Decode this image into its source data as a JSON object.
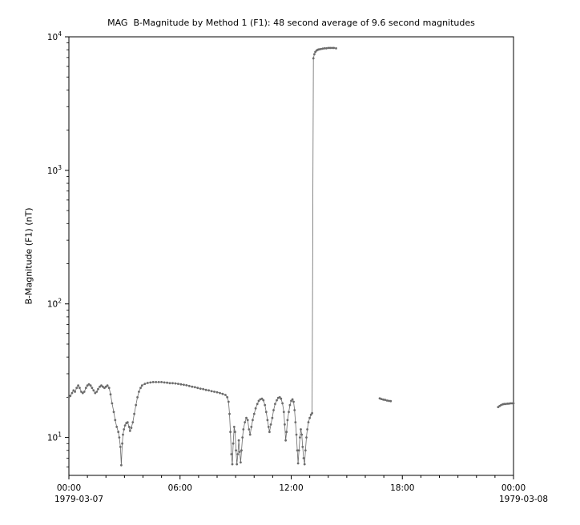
{
  "chart_data": {
    "type": "line",
    "title": "MAG  B-Magnitude by Method 1 (F1): 48 second average of 9.6 second magnitudes",
    "xlabel": "",
    "ylabel": "B-Magnitude (F1) (nT)",
    "yscale": "log",
    "ylim": [
      5.2,
      10000
    ],
    "xlim_hours": [
      0,
      24
    ],
    "grid": false,
    "legend_position": "none",
    "line_color": "#6b6b6b",
    "marker": "dot",
    "x_ticks": [
      {
        "hour": 0,
        "label": "00:00",
        "date": "1979-03-07"
      },
      {
        "hour": 6,
        "label": "06:00"
      },
      {
        "hour": 12,
        "label": "12:00"
      },
      {
        "hour": 18,
        "label": "18:00"
      },
      {
        "hour": 24,
        "label": "00:00",
        "date": "1979-03-08"
      }
    ],
    "y_ticks": [
      {
        "base": "10",
        "exp": 1
      },
      {
        "base": "10",
        "exp": 2
      },
      {
        "base": "10",
        "exp": 3
      },
      {
        "base": "10",
        "exp": 4
      }
    ],
    "series": [
      {
        "name": "B-Magnitude (F1)",
        "color": "#6b6b6b",
        "segments": [
          [
            [
              0.0,
              20
            ],
            [
              0.08,
              20.5
            ],
            [
              0.17,
              21.5
            ],
            [
              0.25,
              22.5
            ],
            [
              0.33,
              22
            ],
            [
              0.42,
              23.5
            ],
            [
              0.5,
              24.5
            ],
            [
              0.58,
              23.5
            ],
            [
              0.67,
              22
            ],
            [
              0.75,
              21.5
            ],
            [
              0.83,
              22
            ],
            [
              0.92,
              23.5
            ],
            [
              1.0,
              24.5
            ],
            [
              1.08,
              25
            ],
            [
              1.17,
              24.5
            ],
            [
              1.25,
              23.5
            ],
            [
              1.33,
              22.5
            ],
            [
              1.42,
              21.5
            ],
            [
              1.5,
              22
            ],
            [
              1.58,
              23
            ],
            [
              1.67,
              24
            ],
            [
              1.75,
              24.5
            ],
            [
              1.83,
              24
            ],
            [
              1.92,
              23.5
            ],
            [
              2.0,
              24
            ],
            [
              2.08,
              24.5
            ],
            [
              2.17,
              23.5
            ],
            [
              2.25,
              21
            ],
            [
              2.33,
              18
            ],
            [
              2.42,
              15.5
            ],
            [
              2.5,
              13.5
            ],
            [
              2.58,
              12
            ],
            [
              2.67,
              11
            ],
            [
              2.72,
              10
            ],
            [
              2.78,
              8.5
            ],
            [
              2.83,
              6.2
            ],
            [
              2.88,
              9
            ],
            [
              2.92,
              10.5
            ],
            [
              2.97,
              11.5
            ],
            [
              3.03,
              12.3
            ],
            [
              3.1,
              12.8
            ],
            [
              3.17,
              13
            ],
            [
              3.25,
              12
            ],
            [
              3.3,
              11.2
            ],
            [
              3.37,
              11.8
            ],
            [
              3.45,
              13
            ],
            [
              3.53,
              15
            ],
            [
              3.62,
              17.5
            ],
            [
              3.7,
              20
            ],
            [
              3.78,
              22
            ],
            [
              3.87,
              23.5
            ],
            [
              3.95,
              24.5
            ],
            [
              4.1,
              25.2
            ],
            [
              4.25,
              25.6
            ],
            [
              4.4,
              25.8
            ],
            [
              4.55,
              26
            ],
            [
              4.7,
              26
            ],
            [
              4.85,
              26
            ],
            [
              5.0,
              26
            ],
            [
              5.15,
              25.8
            ],
            [
              5.3,
              25.7
            ],
            [
              5.45,
              25.5
            ],
            [
              5.6,
              25.5
            ],
            [
              5.75,
              25.4
            ],
            [
              5.9,
              25.2
            ],
            [
              6.05,
              25
            ],
            [
              6.2,
              24.8
            ],
            [
              6.35,
              24.6
            ],
            [
              6.5,
              24.3
            ],
            [
              6.65,
              24
            ],
            [
              6.8,
              23.8
            ],
            [
              6.95,
              23.5
            ],
            [
              7.1,
              23.2
            ],
            [
              7.25,
              23
            ],
            [
              7.4,
              22.7
            ],
            [
              7.55,
              22.5
            ],
            [
              7.7,
              22.2
            ],
            [
              7.85,
              22
            ],
            [
              8.0,
              21.8
            ],
            [
              8.15,
              21.5
            ],
            [
              8.3,
              21.2
            ],
            [
              8.45,
              20.8
            ],
            [
              8.55,
              20
            ],
            [
              8.62,
              18.5
            ],
            [
              8.67,
              15
            ],
            [
              8.72,
              11
            ],
            [
              8.77,
              7.5
            ],
            [
              8.82,
              6.3
            ],
            [
              8.87,
              9
            ],
            [
              8.92,
              12
            ],
            [
              8.97,
              11
            ],
            [
              9.02,
              8
            ],
            [
              9.07,
              6.3
            ],
            [
              9.12,
              7.5
            ],
            [
              9.17,
              9.5
            ],
            [
              9.22,
              7.8
            ],
            [
              9.27,
              6.5
            ],
            [
              9.32,
              8
            ],
            [
              9.37,
              10
            ],
            [
              9.42,
              11.5
            ],
            [
              9.5,
              13
            ],
            [
              9.58,
              14
            ],
            [
              9.65,
              13.5
            ],
            [
              9.72,
              11.5
            ],
            [
              9.78,
              10.5
            ],
            [
              9.85,
              12
            ],
            [
              9.92,
              13.5
            ],
            [
              10.0,
              15
            ],
            [
              10.08,
              16.5
            ],
            [
              10.17,
              17.8
            ],
            [
              10.25,
              18.8
            ],
            [
              10.33,
              19.3
            ],
            [
              10.42,
              19.5
            ],
            [
              10.5,
              19
            ],
            [
              10.58,
              17.5
            ],
            [
              10.65,
              15.5
            ],
            [
              10.72,
              13.5
            ],
            [
              10.78,
              12
            ],
            [
              10.83,
              11
            ],
            [
              10.9,
              12.5
            ],
            [
              10.98,
              14
            ],
            [
              11.05,
              16
            ],
            [
              11.13,
              17.8
            ],
            [
              11.22,
              19
            ],
            [
              11.3,
              19.8
            ],
            [
              11.38,
              20
            ],
            [
              11.45,
              19.5
            ],
            [
              11.53,
              18
            ],
            [
              11.6,
              15.5
            ],
            [
              11.65,
              12.5
            ],
            [
              11.7,
              9.5
            ],
            [
              11.75,
              11
            ],
            [
              11.8,
              13.5
            ],
            [
              11.87,
              15.5
            ],
            [
              11.93,
              17.5
            ],
            [
              12.0,
              18.8
            ],
            [
              12.07,
              19.3
            ],
            [
              12.13,
              18.5
            ],
            [
              12.18,
              16
            ],
            [
              12.23,
              13
            ],
            [
              12.28,
              10.5
            ],
            [
              12.33,
              8
            ],
            [
              12.37,
              6.4
            ],
            [
              12.42,
              8
            ],
            [
              12.47,
              10
            ],
            [
              12.52,
              11.5
            ],
            [
              12.57,
              10.5
            ],
            [
              12.62,
              8.5
            ],
            [
              12.67,
              7
            ],
            [
              12.72,
              6.3
            ],
            [
              12.77,
              8
            ],
            [
              12.82,
              10
            ],
            [
              12.87,
              11.5
            ],
            [
              12.93,
              13
            ],
            [
              13.0,
              14
            ],
            [
              13.07,
              14.8
            ],
            [
              13.13,
              15.2
            ],
            [
              13.2,
              6900
            ],
            [
              13.25,
              7400
            ],
            [
              13.3,
              7700
            ],
            [
              13.37,
              7900
            ],
            [
              13.43,
              8000
            ],
            [
              13.5,
              8050
            ],
            [
              13.6,
              8100
            ],
            [
              13.7,
              8150
            ],
            [
              13.8,
              8200
            ],
            [
              13.9,
              8200
            ],
            [
              14.0,
              8250
            ],
            [
              14.1,
              8250
            ],
            [
              14.2,
              8250
            ],
            [
              14.3,
              8250
            ],
            [
              14.42,
              8200
            ]
          ],
          [
            [
              16.78,
              19.6
            ],
            [
              16.87,
              19.4
            ],
            [
              16.97,
              19.2
            ],
            [
              17.07,
              19.1
            ],
            [
              17.17,
              18.9
            ],
            [
              17.27,
              18.8
            ],
            [
              17.37,
              18.7
            ]
          ],
          [
            [
              23.17,
              16.9
            ],
            [
              23.25,
              17.2
            ],
            [
              23.33,
              17.5
            ],
            [
              23.42,
              17.7
            ],
            [
              23.5,
              17.8
            ],
            [
              23.58,
              17.8
            ],
            [
              23.67,
              17.9
            ],
            [
              23.75,
              17.9
            ],
            [
              23.83,
              18
            ],
            [
              23.92,
              18
            ],
            [
              24.0,
              18
            ]
          ]
        ]
      }
    ]
  }
}
